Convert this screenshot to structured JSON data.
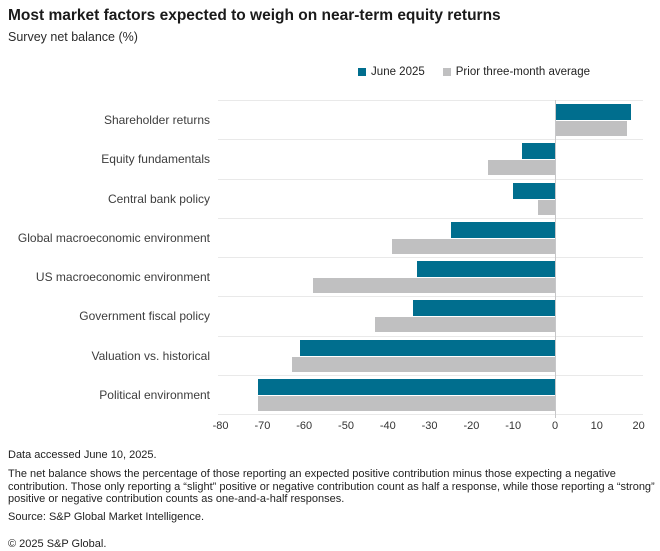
{
  "header": {
    "title": "Most market factors expected to weigh on near-term equity returns",
    "subtitle": "Survey net balance (%)"
  },
  "legend": [
    {
      "label": "June 2025",
      "color": "#006e8e"
    },
    {
      "label": "Prior three-month average",
      "color": "#c0c0c1"
    }
  ],
  "chart_data": {
    "type": "bar",
    "orientation": "horizontal",
    "title": "Most market factors expected to weigh on near-term equity returns",
    "subtitle": "Survey net balance (%)",
    "categories": [
      "Shareholder returns",
      "Equity fundamentals",
      "Central bank policy",
      "Global macroeconomic environment",
      "US macroeconomic environment",
      "Government fiscal policy",
      "Valuation vs. historical",
      "Political environment"
    ],
    "series": [
      {
        "name": "June 2025",
        "color": "#006e8e",
        "values": [
          18,
          -8,
          -10,
          -25,
          -33,
          -34,
          -61,
          -71
        ]
      },
      {
        "name": "Prior three-month average",
        "color": "#c0c0c1",
        "values": [
          17,
          -16,
          -4,
          -39,
          -58,
          -43,
          -63,
          -71
        ]
      }
    ],
    "xlim": [
      -80,
      20
    ],
    "xticks": [
      -80,
      -70,
      -60,
      -50,
      -40,
      -30,
      -20,
      -10,
      0,
      10,
      20
    ],
    "xlabel": "",
    "ylabel": "",
    "grid": "row-separators-and-zero-line",
    "legend_position": "top-right"
  },
  "footer": {
    "accessed": "Data accessed June 10, 2025.",
    "note": "The net balance shows the percentage of those reporting an expected positive contribution minus those expecting a negative contribution. Those only reporting a “slight” positive or negative contribution count as half a response, while those reporting a “strong” positive or negative contribution counts as one-and-a-half responses.",
    "source": "Source: S&P Global Market Intelligence.",
    "copyright": "© 2025 S&P Global."
  }
}
